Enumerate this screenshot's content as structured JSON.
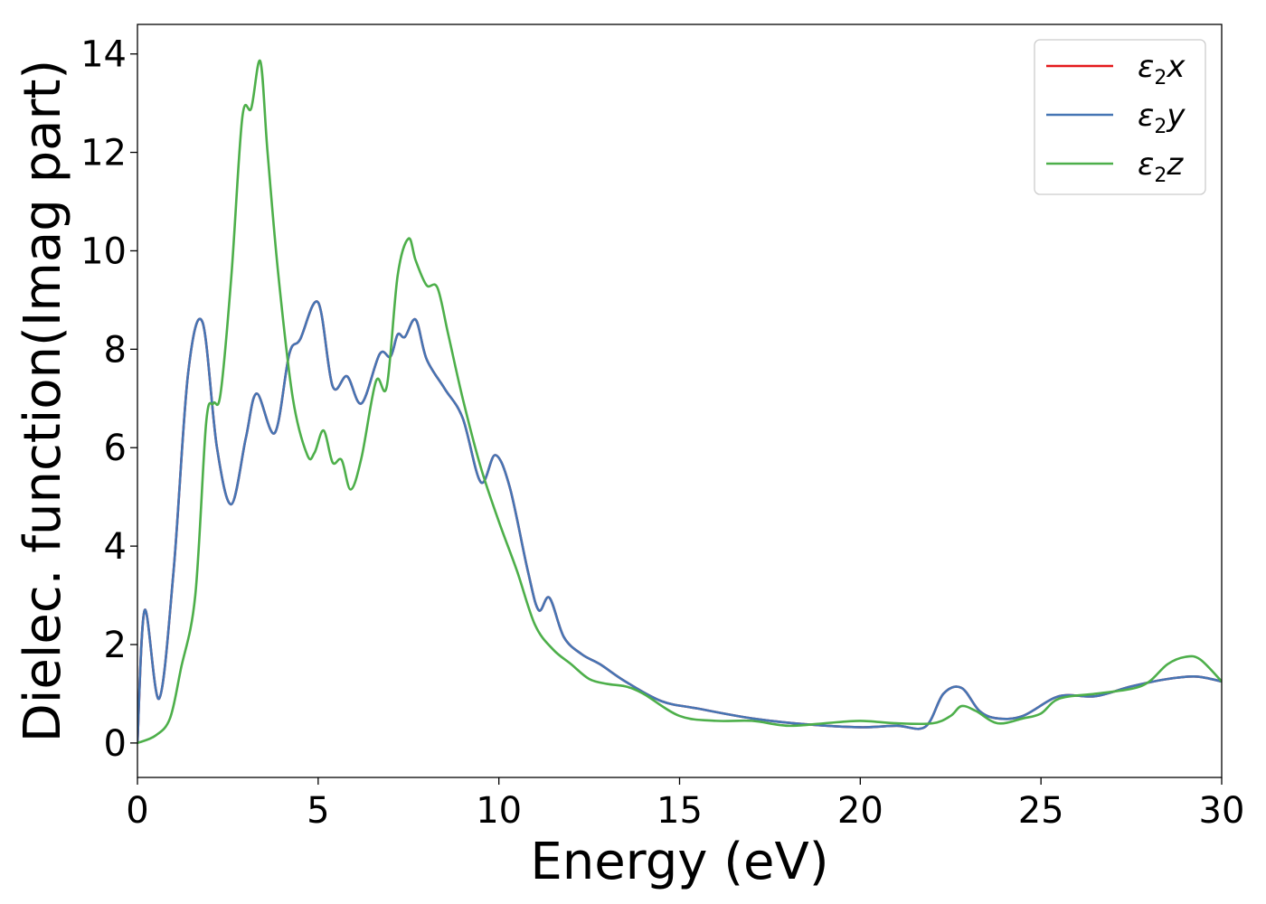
{
  "chart_data": {
    "type": "line",
    "title": "",
    "xlabel": "Energy (eV)",
    "ylabel": "Dielec. function(Imag part)",
    "xlim": [
      0,
      30
    ],
    "ylim": [
      -0.7,
      14.6
    ],
    "xticks": [
      0,
      5,
      10,
      15,
      20,
      25,
      30
    ],
    "yticks": [
      0,
      2,
      4,
      6,
      8,
      10,
      12,
      14
    ],
    "grid": false,
    "legend_position": "top-right",
    "series": [
      {
        "name": "ε2x",
        "legend": {
          "base": "ε",
          "sub": "2",
          "tail": "x"
        },
        "color": "#e41a1c",
        "x": [
          0,
          0.2,
          0.6,
          1.0,
          1.4,
          1.8,
          2.2,
          2.6,
          3.0,
          3.3,
          3.8,
          4.2,
          4.5,
          5.0,
          5.4,
          5.8,
          6.2,
          6.7,
          7.0,
          7.2,
          7.4,
          7.7,
          8.0,
          8.5,
          9.0,
          9.5,
          9.9,
          10.3,
          10.8,
          11.1,
          11.4,
          11.8,
          12.3,
          12.8,
          13.5,
          14.5,
          15.5,
          17.0,
          18.5,
          20.0,
          21.0,
          21.8,
          22.3,
          22.8,
          23.3,
          23.8,
          24.5,
          25.5,
          26.5,
          27.5,
          28.5,
          29.3,
          30.0
        ],
        "y": [
          0.0,
          2.7,
          0.9,
          3.5,
          7.5,
          8.55,
          6.0,
          4.85,
          6.2,
          7.1,
          6.3,
          7.9,
          8.2,
          8.95,
          7.25,
          7.45,
          6.9,
          7.9,
          7.85,
          8.3,
          8.25,
          8.6,
          7.8,
          7.2,
          6.6,
          5.3,
          5.85,
          5.2,
          3.5,
          2.7,
          2.95,
          2.15,
          1.8,
          1.6,
          1.25,
          0.85,
          0.7,
          0.5,
          0.38,
          0.32,
          0.35,
          0.33,
          1.0,
          1.12,
          0.65,
          0.5,
          0.55,
          0.95,
          0.95,
          1.15,
          1.3,
          1.35,
          1.25
        ]
      },
      {
        "name": "ε2y",
        "legend": {
          "base": "ε",
          "sub": "2",
          "tail": "y"
        },
        "color": "#4575b4",
        "x": [
          0,
          0.2,
          0.6,
          1.0,
          1.4,
          1.8,
          2.2,
          2.6,
          3.0,
          3.3,
          3.8,
          4.2,
          4.5,
          5.0,
          5.4,
          5.8,
          6.2,
          6.7,
          7.0,
          7.2,
          7.4,
          7.7,
          8.0,
          8.5,
          9.0,
          9.5,
          9.9,
          10.3,
          10.8,
          11.1,
          11.4,
          11.8,
          12.3,
          12.8,
          13.5,
          14.5,
          15.5,
          17.0,
          18.5,
          20.0,
          21.0,
          21.8,
          22.3,
          22.8,
          23.3,
          23.8,
          24.5,
          25.5,
          26.5,
          27.5,
          28.5,
          29.3,
          30.0
        ],
        "y": [
          0.0,
          2.7,
          0.9,
          3.5,
          7.5,
          8.55,
          6.0,
          4.85,
          6.2,
          7.1,
          6.3,
          7.9,
          8.2,
          8.95,
          7.25,
          7.45,
          6.9,
          7.9,
          7.85,
          8.3,
          8.25,
          8.6,
          7.8,
          7.2,
          6.6,
          5.3,
          5.85,
          5.2,
          3.5,
          2.7,
          2.95,
          2.15,
          1.8,
          1.6,
          1.25,
          0.85,
          0.7,
          0.5,
          0.38,
          0.32,
          0.35,
          0.33,
          1.0,
          1.12,
          0.65,
          0.5,
          0.55,
          0.95,
          0.95,
          1.15,
          1.3,
          1.35,
          1.25
        ]
      },
      {
        "name": "ε2z",
        "legend": {
          "base": "ε",
          "sub": "2",
          "tail": "z"
        },
        "color": "#4daf4a",
        "x": [
          0,
          0.5,
          0.9,
          1.2,
          1.6,
          1.9,
          2.1,
          2.3,
          2.6,
          2.9,
          3.15,
          3.4,
          3.6,
          3.9,
          4.3,
          4.7,
          4.9,
          5.15,
          5.4,
          5.65,
          5.9,
          6.2,
          6.6,
          6.9,
          7.2,
          7.5,
          7.7,
          8.0,
          8.3,
          8.6,
          9.0,
          9.5,
          10.0,
          10.5,
          11.0,
          11.5,
          12.0,
          12.5,
          13.0,
          13.5,
          14.0,
          15.0,
          16.0,
          17.0,
          18.0,
          19.0,
          20.0,
          21.0,
          22.0,
          22.5,
          22.8,
          23.2,
          23.8,
          24.5,
          25.0,
          25.5,
          26.5,
          27.5,
          28.0,
          28.5,
          29.0,
          29.4,
          30.0
        ],
        "y": [
          0.0,
          0.15,
          0.5,
          1.5,
          3.0,
          6.5,
          6.9,
          7.1,
          9.5,
          12.7,
          12.9,
          13.85,
          12.0,
          9.5,
          7.0,
          5.85,
          5.9,
          6.35,
          5.7,
          5.75,
          5.15,
          5.8,
          7.35,
          7.25,
          9.5,
          10.25,
          9.8,
          9.3,
          9.25,
          8.3,
          7.0,
          5.6,
          4.5,
          3.5,
          2.4,
          1.9,
          1.6,
          1.3,
          1.2,
          1.15,
          1.0,
          0.55,
          0.45,
          0.45,
          0.35,
          0.4,
          0.45,
          0.4,
          0.4,
          0.55,
          0.75,
          0.65,
          0.4,
          0.5,
          0.6,
          0.9,
          1.0,
          1.1,
          1.25,
          1.6,
          1.75,
          1.7,
          1.25
        ]
      }
    ]
  }
}
